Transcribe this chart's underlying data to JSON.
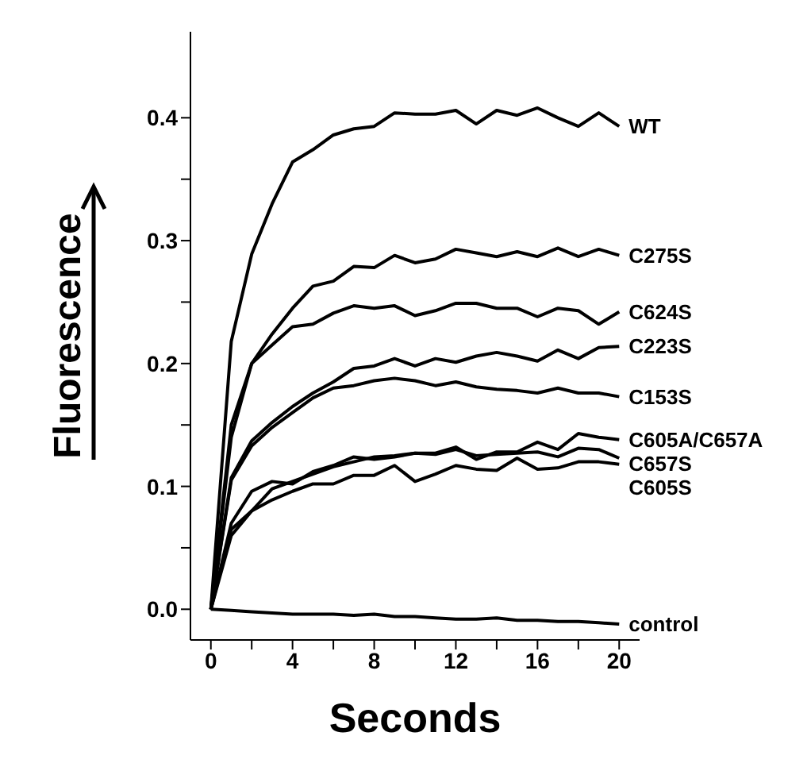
{
  "chart_data": {
    "type": "line",
    "xlabel": "Seconds",
    "ylabel": "Fluorescence",
    "x": [
      0,
      1,
      2,
      3,
      4,
      5,
      6,
      7,
      8,
      9,
      10,
      11,
      12,
      13,
      14,
      15,
      16,
      17,
      18,
      19,
      20
    ],
    "xlim": [
      -1,
      21
    ],
    "xticks": [
      0,
      {
        "value": 2,
        "label": null
      },
      4,
      {
        "value": 6,
        "label": null
      },
      8,
      {
        "value": 10,
        "label": null
      },
      12,
      {
        "value": 14,
        "label": null
      },
      16,
      {
        "value": 18,
        "label": null
      },
      20
    ],
    "ylim": [
      -0.025,
      0.47
    ],
    "yticks": [
      {
        "value": 0,
        "label": "0.0"
      },
      {
        "value": 0.05,
        "label": null
      },
      0.1,
      {
        "value": 0.15,
        "label": null
      },
      0.2,
      {
        "value": 0.25,
        "label": null
      },
      0.3,
      {
        "value": 0.35,
        "label": null
      },
      0.4
    ],
    "grid": false,
    "legend": false,
    "marker": "none",
    "line_style": "solid",
    "series": [
      {
        "name": "WT",
        "color": "#000000",
        "values": [
          0,
          0.218,
          0.289,
          0.33,
          0.364,
          0.374,
          0.386,
          0.391,
          0.393,
          0.404,
          0.403,
          0.403,
          0.406,
          0.395,
          0.406,
          0.402,
          0.408,
          0.4,
          0.393,
          0.404,
          0.393
        ]
      },
      {
        "name": "C275S",
        "color": "#000000",
        "values": [
          0,
          0.15,
          0.2,
          0.224,
          0.245,
          0.263,
          0.267,
          0.279,
          0.278,
          0.288,
          0.282,
          0.285,
          0.293,
          0.29,
          0.287,
          0.291,
          0.287,
          0.294,
          0.287,
          0.293,
          0.288
        ]
      },
      {
        "name": "C624S",
        "color": "#000000",
        "values": [
          0,
          0.14,
          0.2,
          0.215,
          0.23,
          0.232,
          0.241,
          0.247,
          0.245,
          0.247,
          0.239,
          0.243,
          0.249,
          0.249,
          0.245,
          0.245,
          0.238,
          0.245,
          0.243,
          0.232,
          0.242
        ]
      },
      {
        "name": "C223S",
        "color": "#000000",
        "values": [
          0,
          0.107,
          0.137,
          0.152,
          0.165,
          0.176,
          0.185,
          0.196,
          0.198,
          0.204,
          0.198,
          0.204,
          0.201,
          0.206,
          0.209,
          0.206,
          0.202,
          0.211,
          0.204,
          0.213,
          0.214
        ]
      },
      {
        "name": "C153S",
        "color": "#000000",
        "values": [
          0,
          0.105,
          0.133,
          0.148,
          0.16,
          0.172,
          0.18,
          0.182,
          0.186,
          0.188,
          0.186,
          0.182,
          0.185,
          0.181,
          0.179,
          0.178,
          0.176,
          0.18,
          0.176,
          0.176,
          0.173
        ]
      },
      {
        "name": "C605A/C657A",
        "color": "#000000",
        "values": [
          0,
          0.07,
          0.096,
          0.104,
          0.102,
          0.112,
          0.117,
          0.124,
          0.122,
          0.124,
          0.127,
          0.127,
          0.132,
          0.122,
          0.128,
          0.128,
          0.136,
          0.13,
          0.143,
          0.14,
          0.138
        ]
      },
      {
        "name": "C657S",
        "color": "#000000",
        "values": [
          0,
          0.065,
          0.08,
          0.098,
          0.104,
          0.11,
          0.116,
          0.12,
          0.124,
          0.125,
          0.127,
          0.126,
          0.13,
          0.125,
          0.126,
          0.127,
          0.128,
          0.124,
          0.131,
          0.13,
          0.123
        ]
      },
      {
        "name": "C605S",
        "color": "#000000",
        "values": [
          0,
          0.06,
          0.08,
          0.089,
          0.096,
          0.102,
          0.102,
          0.109,
          0.109,
          0.117,
          0.104,
          0.11,
          0.117,
          0.114,
          0.113,
          0.123,
          0.114,
          0.115,
          0.12,
          0.12,
          0.118
        ]
      },
      {
        "name": "control",
        "color": "#000000",
        "values": [
          0,
          -0.001,
          -0.002,
          -0.003,
          -0.004,
          -0.004,
          -0.004,
          -0.005,
          -0.004,
          -0.006,
          -0.006,
          -0.007,
          -0.008,
          -0.008,
          -0.007,
          -0.009,
          -0.009,
          -0.01,
          -0.01,
          -0.011,
          -0.012
        ]
      }
    ]
  }
}
